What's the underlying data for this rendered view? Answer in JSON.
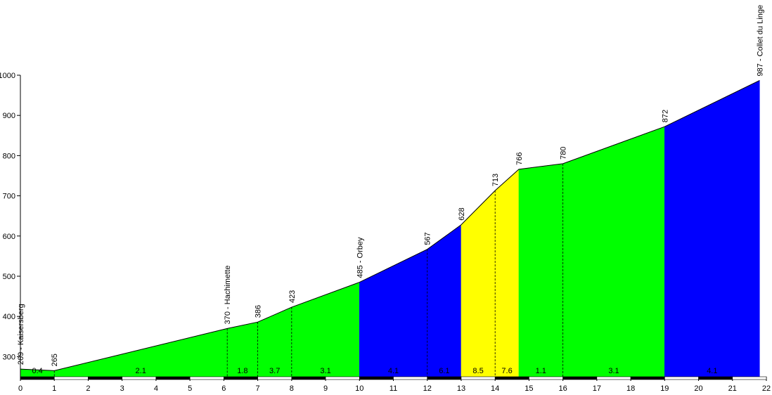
{
  "chart_data": {
    "type": "area",
    "title": "",
    "xlabel": "",
    "ylabel": "",
    "xlim": [
      0,
      22
    ],
    "ylim": [
      250,
      1000
    ],
    "x_ticks": [
      "0",
      "1",
      "2",
      "3",
      "4",
      "5",
      "6",
      "7",
      "8",
      "9",
      "10",
      "11",
      "12",
      "13",
      "14",
      "15",
      "16",
      "17",
      "18",
      "19",
      "20",
      "21",
      "22"
    ],
    "y_ticks": [
      "300",
      "400",
      "500",
      "600",
      "700",
      "800",
      "900",
      "1000"
    ],
    "profile": [
      {
        "x": 0,
        "y": 269,
        "label": "269 - Kaisersberg"
      },
      {
        "x": 1,
        "y": 265,
        "label": "265"
      },
      {
        "x": 6.1,
        "y": 370,
        "label": "370 - Hachimette"
      },
      {
        "x": 7,
        "y": 386,
        "label": "386"
      },
      {
        "x": 8,
        "y": 423,
        "label": "423"
      },
      {
        "x": 10,
        "y": 485,
        "label": "485 - Orbey"
      },
      {
        "x": 12,
        "y": 567,
        "label": "567"
      },
      {
        "x": 13,
        "y": 628,
        "label": "628"
      },
      {
        "x": 14,
        "y": 713,
        "label": "713"
      },
      {
        "x": 14.7,
        "y": 766,
        "label": "766"
      },
      {
        "x": 16,
        "y": 780,
        "label": "780"
      },
      {
        "x": 19,
        "y": 872,
        "label": "872"
      },
      {
        "x": 21.8,
        "y": 987,
        "label": "987 - Collet du Linge"
      }
    ],
    "segments": [
      {
        "from": 0,
        "to": 1,
        "gradient": "0.4",
        "color": "#00ff00"
      },
      {
        "from": 1,
        "to": 6.1,
        "gradient": "2.1",
        "color": "#00ff00"
      },
      {
        "from": 6.1,
        "to": 7,
        "gradient": "1.8",
        "color": "#00ff00"
      },
      {
        "from": 7,
        "to": 8,
        "gradient": "3.7",
        "color": "#00ff00"
      },
      {
        "from": 8,
        "to": 10,
        "gradient": "3.1",
        "color": "#00ff00"
      },
      {
        "from": 10,
        "to": 12,
        "gradient": "4.1",
        "color": "#0000ff"
      },
      {
        "from": 12,
        "to": 13,
        "gradient": "6.1",
        "color": "#0000ff"
      },
      {
        "from": 13,
        "to": 14,
        "gradient": "8.5",
        "color": "#ffff00"
      },
      {
        "from": 14,
        "to": 14.7,
        "gradient": "7.6",
        "color": "#ffff00"
      },
      {
        "from": 14.7,
        "to": 16,
        "gradient": "1.1",
        "color": "#00ff00"
      },
      {
        "from": 16,
        "to": 19,
        "gradient": "3.1",
        "color": "#00ff00"
      },
      {
        "from": 19,
        "to": 21.8,
        "gradient": "4.1",
        "color": "#0000ff"
      }
    ],
    "colors": {
      "green": "#00ff00",
      "blue": "#0000ff",
      "yellow": "#ffff00"
    },
    "grid": false,
    "legend": "none"
  }
}
